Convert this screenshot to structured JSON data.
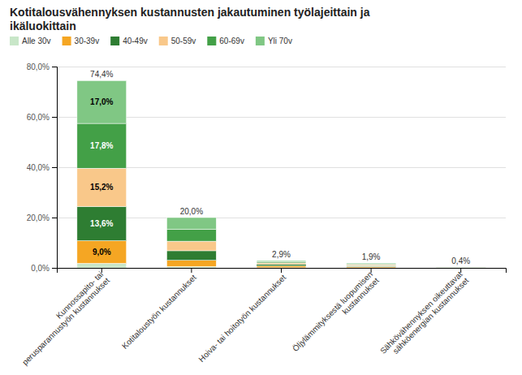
{
  "chart_data": {
    "type": "bar",
    "stacked": true,
    "title": "Kotitalousvähennyksen kustannusten jakautuminen työlajeittain ja\nikäluokittain",
    "categories": [
      "Kunnossapito- tai\nperusparannustyön kustannukset",
      "Kotitaloustyön kustannukset",
      "Hoiva- tai hoitotyön kustannukset",
      "Öljylämmityksestä luopumisen\nkustannukset",
      "Sähkövähennyksen oikeuttavat\nsähköenergian kustannukset"
    ],
    "series": [
      {
        "name": "Alle 30v",
        "color": "#c8e6c8",
        "values": [
          1.8,
          0.5,
          0.07,
          0.04,
          0.01
        ]
      },
      {
        "name": "30-39v",
        "color": "#f5a623",
        "values": [
          9.0,
          2.5,
          0.68,
          0.44,
          0.09
        ],
        "value_labels": [
          "9,0%",
          null,
          null,
          null,
          null
        ]
      },
      {
        "name": "40-49v",
        "color": "#2e7d32",
        "values": [
          13.6,
          3.8,
          0.62,
          0.41,
          0.08
        ],
        "value_labels": [
          "13,6%",
          null,
          null,
          null,
          null
        ]
      },
      {
        "name": "50-59v",
        "color": "#f9c88a",
        "values": [
          15.2,
          3.8,
          0.6,
          0.39,
          0.07
        ],
        "value_labels": [
          "15,2%",
          null,
          null,
          null,
          null
        ]
      },
      {
        "name": "60-69v",
        "color": "#43a047",
        "values": [
          17.8,
          4.8,
          0.47,
          0.3,
          0.06
        ],
        "value_labels": [
          "17,8%",
          null,
          null,
          null,
          null
        ]
      },
      {
        "name": "Yli 70v",
        "color": "#80c784",
        "values": [
          17.0,
          4.6,
          0.43,
          0.32,
          0.09
        ],
        "value_labels": [
          "17,0%",
          null,
          null,
          null,
          null
        ]
      }
    ],
    "totals": [
      74.4,
      20.0,
      2.9,
      1.9,
      0.4
    ],
    "total_labels": [
      "74,4%",
      "20,0%",
      "2,9%",
      "1,9%",
      "0,4%"
    ],
    "data_labels": true,
    "ylim": [
      0,
      80
    ],
    "yticks": [
      {
        "value": 0,
        "label": "0,0%"
      },
      {
        "value": 20,
        "label": "20,0%"
      },
      {
        "value": 40,
        "label": "40,0%"
      },
      {
        "value": 60,
        "label": "60,0%"
      },
      {
        "value": 80,
        "label": "80,0%"
      }
    ],
    "grid": true,
    "legend": "top"
  }
}
